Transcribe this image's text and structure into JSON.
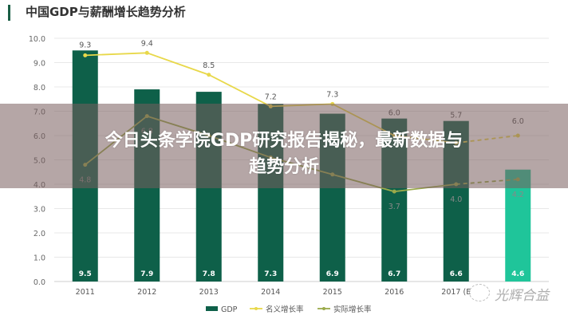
{
  "headline": {
    "line1": "今日头条学院GDP研究报告揭秘，最新数据与",
    "line2": "趋势分析"
  },
  "watermark": "光辉合益",
  "chart_data": {
    "type": "bar",
    "title": "中国GDP与薪酬增长趋势分析",
    "categories": [
      "2011",
      "2012",
      "2013",
      "2014",
      "2015",
      "2016",
      "2017 (E",
      ""
    ],
    "ylim": [
      0,
      10
    ],
    "yticks": [
      "0.0",
      "1.0",
      "2.0",
      "3.0",
      "4.0",
      "5.0",
      "6.0",
      "7.0",
      "8.0",
      "9.0",
      "10.0"
    ],
    "grid": true,
    "legend_position": "bottom",
    "series": [
      {
        "name": "GDP",
        "type": "bar",
        "values": [
          9.5,
          7.9,
          7.8,
          7.3,
          6.9,
          6.7,
          6.6,
          4.6
        ],
        "labels": [
          "9.5",
          "7.9",
          "7.8",
          "7.3",
          "6.9",
          "6.7",
          "6.6",
          "4.6"
        ],
        "color": "#0e6049",
        "last_color": "#1fc59a"
      },
      {
        "name": "名义增长率",
        "type": "line",
        "values": [
          9.3,
          9.4,
          8.5,
          7.2,
          7.3,
          6.0,
          5.7,
          6.0
        ],
        "labels": [
          "9.3",
          "9.4",
          "8.5",
          "7.2",
          "7.3",
          "6.0",
          "5.7",
          "6.0"
        ],
        "color": "#e8d84a"
      },
      {
        "name": "实际增长率",
        "type": "line",
        "values": [
          4.8,
          6.8,
          6.0,
          5.1,
          4.4,
          3.7,
          4.0,
          4.2
        ],
        "labels": [
          "4.8",
          "6.8",
          "",
          "",
          "",
          "3.7",
          "4.0",
          "4.2"
        ],
        "color": "#9aaa4a"
      }
    ]
  }
}
